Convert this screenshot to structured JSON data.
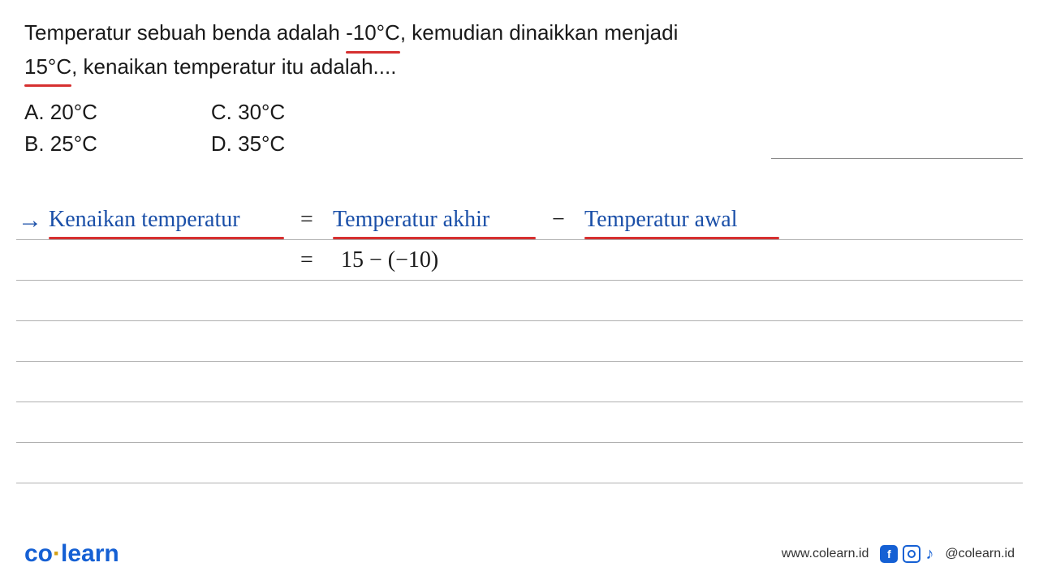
{
  "question": {
    "line1_pre": "Temperatur sebuah benda adalah ",
    "line1_highlight": "-10°C",
    "line1_post": ", kemudian dinaikkan menjadi",
    "line2_highlight": "15°C",
    "line2_post": ", kenaikan temperatur itu adalah...."
  },
  "options": {
    "a": "A. 20°C",
    "b": "B. 25°C",
    "c": "C. 30°C",
    "d": "D. 35°C"
  },
  "handwriting": {
    "arrow": "→",
    "label": "Kenaikan temperatur",
    "equals1": "=",
    "term1": "Temperatur akhir",
    "minus": "−",
    "term2": "Temperatur awal",
    "equals2": "=",
    "calc": "15 − (−10)"
  },
  "ruled_lines": {
    "positions": [
      295,
      345,
      395,
      445,
      495,
      545,
      595
    ],
    "color": "#b0b0b0"
  },
  "colors": {
    "red_underline": "#d63030",
    "blue_ink": "#1a4fa8",
    "black_ink": "#1a1a1a",
    "brand_blue": "#1560d4",
    "brand_accent": "#d4a015"
  },
  "footer": {
    "logo_part1": "co",
    "logo_dot": "·",
    "logo_part2": "learn",
    "url": "www.colearn.id",
    "handle": "@colearn.id"
  }
}
